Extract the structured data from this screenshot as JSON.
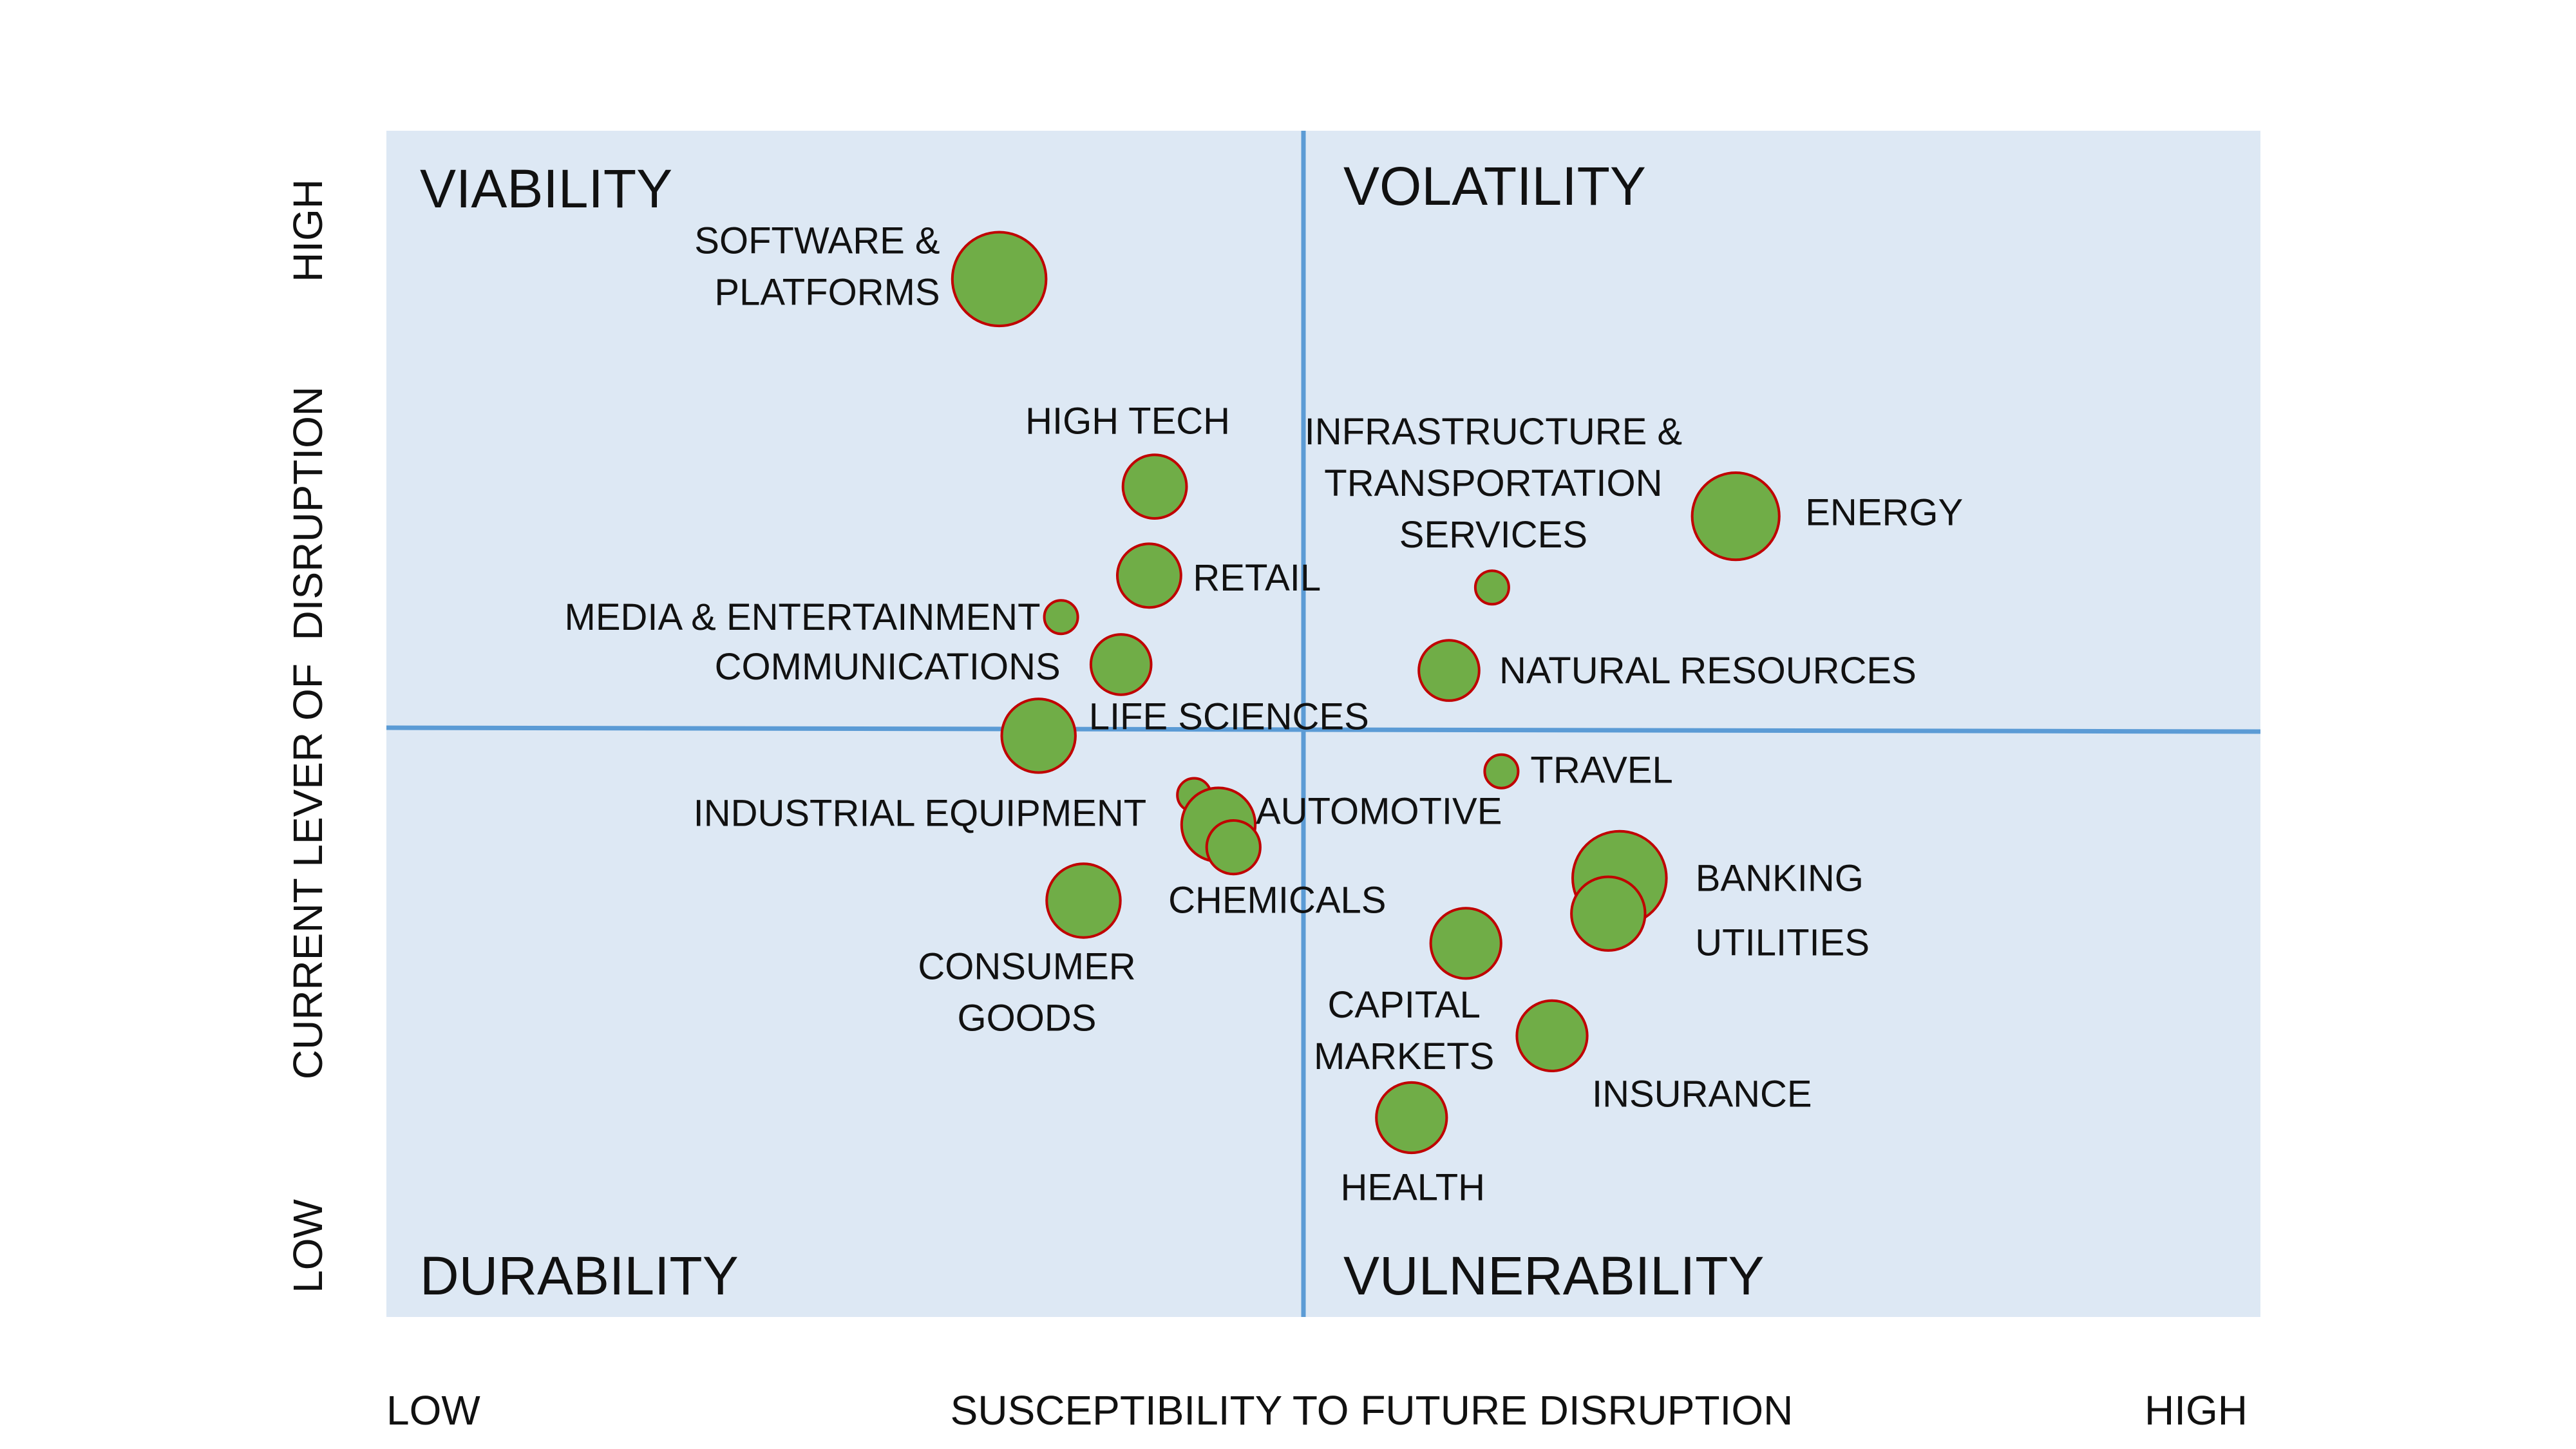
{
  "chart_data": {
    "type": "scatter",
    "title": "",
    "xlabel": "SUSCEPTIBILITY TO FUTURE DISRUPTION",
    "ylabel": "CURRENT LEVER OF  DISRUPTION",
    "x_low_label": "LOW",
    "x_high_label": "HIGH",
    "y_low_label": "LOW",
    "y_high_label": "HIGH",
    "xlim": [
      0,
      100
    ],
    "ylim": [
      0,
      100
    ],
    "quadrants": {
      "top_left": "VIABILITY",
      "top_right": "VOLATILITY",
      "bottom_left": "DURABILITY",
      "bottom_right": "VULNERABILITY"
    },
    "points": [
      {
        "label": [
          "SOFTWARE &",
          "PLATFORMS"
        ],
        "x": 32.7,
        "y": 87.5,
        "size": 28
      },
      {
        "label": [
          "HIGH TECH"
        ],
        "x": 41.0,
        "y": 70.0,
        "size": 19
      },
      {
        "label": [
          "RETAIL"
        ],
        "x": 40.7,
        "y": 62.5,
        "size": 19
      },
      {
        "label": [
          "MEDIA & ENTERTAINMENT"
        ],
        "x": 36.0,
        "y": 59.0,
        "size": 10
      },
      {
        "label": [
          "COMMUNICATIONS"
        ],
        "x": 39.2,
        "y": 55.0,
        "size": 18
      },
      {
        "label": [
          "LIFE SCIENCES"
        ],
        "x": 34.8,
        "y": 49.0,
        "size": 22
      },
      {
        "label": [
          "INDUSTRIAL EQUIPMENT"
        ],
        "x": 43.1,
        "y": 44.0,
        "size": 10
      },
      {
        "label": [
          "AUTOMOTIVE"
        ],
        "x": 44.4,
        "y": 41.5,
        "size": 22
      },
      {
        "label": [
          "CHEMICALS"
        ],
        "x": 45.2,
        "y": 39.6,
        "size": 16
      },
      {
        "label": [
          "CONSUMER",
          "GOODS"
        ],
        "x": 37.2,
        "y": 35.1,
        "size": 22
      },
      {
        "label": [
          "INFRASTRUCTURE &",
          "TRANSPORTATION",
          "SERVICES"
        ],
        "x": 59.0,
        "y": 61.5,
        "size": 10
      },
      {
        "label": [
          "ENERGY"
        ],
        "x": 72.0,
        "y": 67.5,
        "size": 26
      },
      {
        "label": [
          "NATURAL RESOURCES"
        ],
        "x": 56.7,
        "y": 54.5,
        "size": 18
      },
      {
        "label": [
          "TRAVEL"
        ],
        "x": 59.5,
        "y": 46.0,
        "size": 10
      },
      {
        "label": [
          "BANKING"
        ],
        "x": 65.8,
        "y": 37.0,
        "size": 28
      },
      {
        "label": [
          "UTILITIES"
        ],
        "x": 65.2,
        "y": 34.0,
        "size": 22
      },
      {
        "label": [
          "CAPITAL",
          "MARKETS"
        ],
        "x": 57.6,
        "y": 31.5,
        "size": 21
      },
      {
        "label": [
          "INSURANCE"
        ],
        "x": 62.2,
        "y": 23.7,
        "size": 21
      },
      {
        "label": [
          "HEALTH"
        ],
        "x": 54.7,
        "y": 16.8,
        "size": 21
      }
    ],
    "colors": {
      "plot_background": "#dde8f4",
      "divider": "#5b9bd5",
      "bubble_fill": "#70ad47",
      "bubble_stroke": "#c00000"
    }
  }
}
